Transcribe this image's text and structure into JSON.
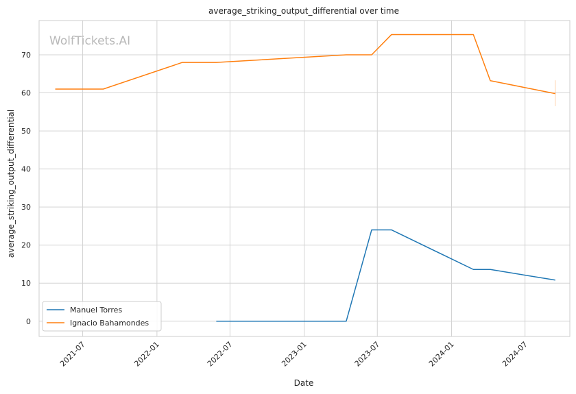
{
  "chart_data": {
    "type": "line",
    "title": "average_striking_output_differential over time",
    "xlabel": "Date",
    "ylabel": "average_striking_output_differential",
    "watermark": "WolfTickets.AI",
    "x_range": [
      "2021-03-15",
      "2024-10-20"
    ],
    "ylim": [
      -4,
      79
    ],
    "y_ticks": [
      0,
      10,
      20,
      30,
      40,
      50,
      60,
      70
    ],
    "x_ticks": [
      {
        "date": "2021-07-01",
        "label": "2021-07"
      },
      {
        "date": "2022-01-01",
        "label": "2022-01"
      },
      {
        "date": "2022-07-01",
        "label": "2022-07"
      },
      {
        "date": "2023-01-01",
        "label": "2023-01"
      },
      {
        "date": "2023-07-01",
        "label": "2023-07"
      },
      {
        "date": "2024-01-01",
        "label": "2024-01"
      },
      {
        "date": "2024-07-01",
        "label": "2024-07"
      }
    ],
    "grid": true,
    "legend_position": "lower-left",
    "series": [
      {
        "name": "Manuel Torres",
        "color": "#1f77b4",
        "points": [
          {
            "x": "2022-05-28",
            "y": 0
          },
          {
            "x": "2023-04-15",
            "y": 0
          },
          {
            "x": "2023-06-17",
            "y": 24
          },
          {
            "x": "2023-08-05",
            "y": 24
          },
          {
            "x": "2024-02-24",
            "y": 13.6
          },
          {
            "x": "2024-04-06",
            "y": 13.6
          },
          {
            "x": "2024-09-14",
            "y": 10.8
          }
        ]
      },
      {
        "name": "Ignacio Bahamondes",
        "color": "#ff7f0e",
        "points": [
          {
            "x": "2021-04-24",
            "y": 61
          },
          {
            "x": "2021-08-21",
            "y": 61
          },
          {
            "x": "2022-03-05",
            "y": 68
          },
          {
            "x": "2022-05-28",
            "y": 68
          },
          {
            "x": "2023-04-15",
            "y": 70
          },
          {
            "x": "2023-06-17",
            "y": 70
          },
          {
            "x": "2023-08-05",
            "y": 75.3
          },
          {
            "x": "2024-02-24",
            "y": 75.3
          },
          {
            "x": "2024-04-06",
            "y": 63.2
          },
          {
            "x": "2024-09-14",
            "y": 59.8
          }
        ],
        "error_bar": {
          "x": "2024-09-14",
          "low": 56.5,
          "high": 63.3
        }
      }
    ]
  }
}
